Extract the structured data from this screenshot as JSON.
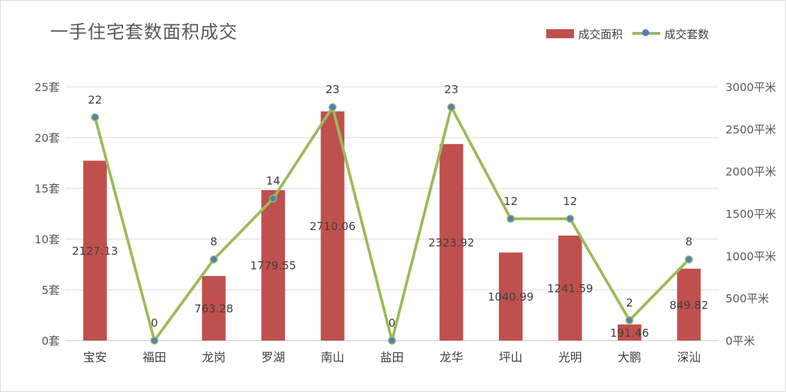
{
  "title": "一手住宅套数面积成交",
  "legend": {
    "bar_label": "成交面积",
    "line_label": "成交套数"
  },
  "colors": {
    "bar": "#c0504d",
    "line": "#9bbb59",
    "marker": "#4f81bd",
    "grid": "#d9d9d9",
    "axis_text": "#595959",
    "label_text": "#404040"
  },
  "chart_data": {
    "type": "bar",
    "categories": [
      "宝安",
      "福田",
      "龙岗",
      "罗湖",
      "南山",
      "盐田",
      "龙华",
      "坪山",
      "光明",
      "大鹏",
      "深汕"
    ],
    "series": [
      {
        "name": "成交面积",
        "type": "bar",
        "axis": "right",
        "values": [
          2127.13,
          0,
          763.28,
          1779.55,
          2710.06,
          0,
          2323.92,
          1040.99,
          1241.59,
          191.46,
          849.82
        ],
        "labels": [
          "2127.13",
          "",
          "763.28",
          "1779.55",
          "2710.06",
          "",
          "2323.92",
          "1040.99",
          "1241.59",
          "191.46",
          "849.82"
        ]
      },
      {
        "name": "成交套数",
        "type": "line",
        "axis": "left",
        "values": [
          22,
          0,
          8,
          14,
          23,
          0,
          23,
          12,
          12,
          2,
          8
        ],
        "labels": [
          "22",
          "0",
          "8",
          "14",
          "23",
          "0",
          "23",
          "12",
          "12",
          "2",
          "8"
        ]
      }
    ],
    "y_left": {
      "range": [
        0,
        25
      ],
      "ticks": [
        0,
        5,
        10,
        15,
        20,
        25
      ],
      "tick_labels": [
        "0套",
        "5套",
        "10套",
        "15套",
        "20套",
        "25套"
      ]
    },
    "y_right": {
      "range": [
        0,
        3000
      ],
      "ticks": [
        0,
        500,
        1000,
        1500,
        2000,
        2500,
        3000
      ],
      "tick_labels": [
        "0平米",
        "500平米",
        "1000平米",
        "1500平米",
        "2000平米",
        "2500平米",
        "3000平米"
      ]
    },
    "grid": true,
    "legend_position": "top-right"
  }
}
